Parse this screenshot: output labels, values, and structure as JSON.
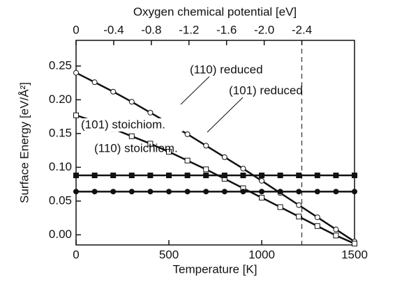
{
  "chart_data": {
    "type": "line",
    "xlabel": "Temperature  [K]",
    "ylabel": "Surface Energy  [eV/Å²]",
    "x2label": "Oxygen chemical potential   [eV]",
    "xlim": [
      0,
      1500
    ],
    "xticks": [
      0,
      500,
      1000,
      1500
    ],
    "x2lim": [
      0,
      -2.96
    ],
    "x2ticks": [
      0,
      -0.4,
      -0.8,
      -1.2,
      -1.6,
      {
        "value": -2.0,
        "label": "-2.0"
      },
      -2.4
    ],
    "ylim": [
      -0.015,
      0.288
    ],
    "yticks": [
      {
        "value": 0,
        "label": "0.00"
      },
      {
        "value": 0.05,
        "label": "0.05"
      },
      {
        "value": 0.1,
        "label": "0.10"
      },
      {
        "value": 0.15,
        "label": "0.15"
      },
      {
        "value": 0.2,
        "label": "0.20"
      },
      {
        "value": 0.25,
        "label": "0.25"
      }
    ],
    "vline_x2": -2.4,
    "x": [
      0,
      100,
      200,
      300,
      400,
      500,
      600,
      700,
      800,
      900,
      1000,
      1100,
      1200,
      1300,
      1400,
      1500
    ],
    "series": [
      {
        "name": "(110) reduced",
        "color": "#111111",
        "marker": "circle",
        "filled": false,
        "values": [
          0.24,
          0.226,
          0.212,
          0.197,
          0.181,
          0.165,
          0.149,
          0.132,
          0.115,
          0.098,
          0.08,
          0.062,
          0.044,
          0.026,
          0.008,
          -0.01
        ]
      },
      {
        "name": "(101) reduced",
        "color": "#111111",
        "marker": "square",
        "filled": false,
        "values": [
          0.177,
          0.168,
          0.157,
          0.146,
          0.135,
          0.123,
          0.11,
          0.097,
          0.083,
          0.069,
          0.055,
          0.041,
          0.027,
          0.013,
          -0.001,
          -0.013
        ]
      },
      {
        "name": "(101) stoichiom.",
        "color": "#111111",
        "marker": "square",
        "filled": true,
        "values": [
          0.088,
          0.088,
          0.088,
          0.088,
          0.088,
          0.088,
          0.088,
          0.088,
          0.088,
          0.088,
          0.088,
          0.088,
          0.088,
          0.088,
          0.088,
          0.088
        ]
      },
      {
        "name": "(110) stoichiom.",
        "color": "#111111",
        "marker": "circle",
        "filled": true,
        "values": [
          0.064,
          0.064,
          0.064,
          0.064,
          0.064,
          0.064,
          0.064,
          0.064,
          0.064,
          0.064,
          0.064,
          0.064,
          0.064,
          0.064,
          0.064,
          0.064
        ]
      }
    ]
  }
}
